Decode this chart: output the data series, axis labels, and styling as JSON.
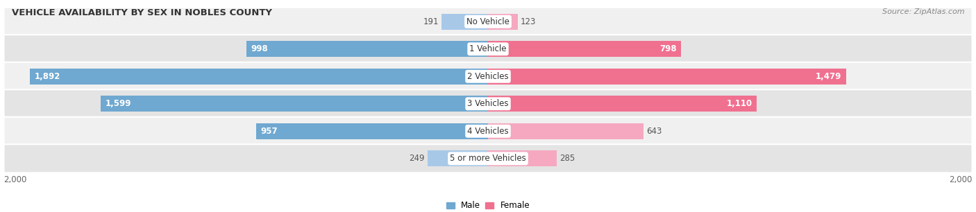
{
  "title": "VEHICLE AVAILABILITY BY SEX IN NOBLES COUNTY",
  "source": "Source: ZipAtlas.com",
  "categories": [
    "No Vehicle",
    "1 Vehicle",
    "2 Vehicles",
    "3 Vehicles",
    "4 Vehicles",
    "5 or more Vehicles"
  ],
  "male_values": [
    191,
    998,
    1892,
    1599,
    957,
    249
  ],
  "female_values": [
    123,
    798,
    1479,
    1110,
    643,
    285
  ],
  "male_color_dark": "#6fa8d0",
  "male_color_light": "#a8c8e8",
  "female_color_dark": "#f07090",
  "female_color_light": "#f5a8c0",
  "row_color_light": "#f0f0f0",
  "row_color_dark": "#e4e4e4",
  "max_value": 2000,
  "bar_height": 0.58,
  "label_fontsize": 8.5,
  "title_fontsize": 9.5,
  "source_fontsize": 8,
  "axis_label": "2,000",
  "legend_male": "Male",
  "legend_female": "Female",
  "male_threshold": 900,
  "female_threshold": 700
}
